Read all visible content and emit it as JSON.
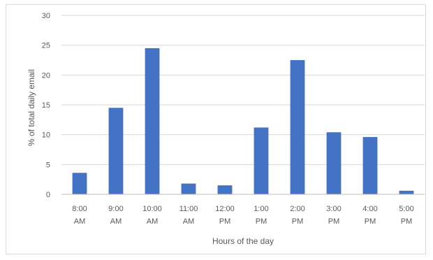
{
  "chart_data": {
    "type": "bar",
    "categories": [
      "8:00 AM",
      "9:00 AM",
      "10:00 AM",
      "11:00 AM",
      "12:00 PM",
      "1:00 PM",
      "2:00 PM",
      "3:00 PM",
      "4:00 PM",
      "5:00 PM"
    ],
    "category_lines": [
      [
        "8:00",
        "AM"
      ],
      [
        "9:00",
        "AM"
      ],
      [
        "10:00",
        "AM"
      ],
      [
        "11:00",
        "AM"
      ],
      [
        "12:00",
        "PM"
      ],
      [
        "1:00",
        "PM"
      ],
      [
        "2:00",
        "PM"
      ],
      [
        "3:00",
        "PM"
      ],
      [
        "4:00",
        "PM"
      ],
      [
        "5:00",
        "PM"
      ]
    ],
    "values": [
      3.6,
      14.5,
      24.5,
      1.8,
      1.5,
      11.2,
      22.5,
      10.4,
      9.6,
      0.6
    ],
    "title": "",
    "xlabel": "Hours of the day",
    "ylabel": "% of total daily email",
    "ylim": [
      0,
      30
    ],
    "yticks": [
      0,
      5,
      10,
      15,
      20,
      25,
      30
    ],
    "grid": true,
    "legend": "none",
    "bar_color": "#4472c4"
  }
}
